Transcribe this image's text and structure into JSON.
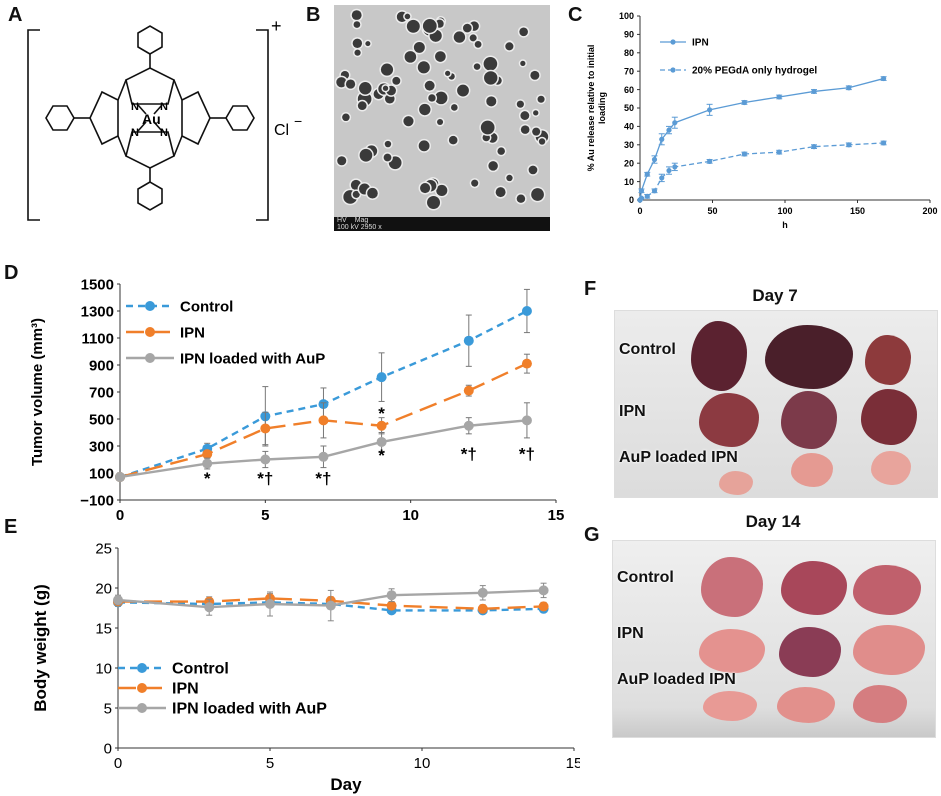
{
  "panels": {
    "a": "A",
    "b": "B",
    "c": "C",
    "d": "D",
    "e": "E",
    "f": "F",
    "g": "G"
  },
  "molecule": {
    "metal": "Au",
    "N": "N",
    "charge": "+",
    "counterion": "Cl",
    "counterion_charge": "−"
  },
  "micrograph": {
    "footer_hv": "HV",
    "footer_mag": "Mag",
    "footer_values": "100 kV 2950 x"
  },
  "photos": {
    "day7": {
      "title": "Day 7",
      "labels": [
        "Control",
        "IPN",
        "AuP loaded IPN"
      ]
    },
    "day14": {
      "title": "Day 14",
      "labels": [
        "Control",
        "IPN",
        "AuP loaded IPN"
      ]
    }
  },
  "colors": {
    "blue": "#3a9ad9",
    "orange": "#f07f2a",
    "gray": "#a6a6a6",
    "release_blue": "#5b9bd5"
  },
  "chart_data": [
    {
      "id": "C",
      "type": "line",
      "title": "",
      "xlabel": "h",
      "ylabel": "% Au release relative to initial loading",
      "xlim": [
        0,
        200
      ],
      "ylim": [
        0,
        100
      ],
      "xticks": [
        0,
        50,
        100,
        150,
        200
      ],
      "yticks": [
        0,
        10,
        20,
        30,
        40,
        50,
        60,
        70,
        80,
        90,
        100
      ],
      "legend": "top-left",
      "series": [
        {
          "name": "IPN",
          "style": "solid",
          "x": [
            0,
            1,
            5,
            10,
            15,
            20,
            24,
            48,
            72,
            96,
            120,
            144,
            168
          ],
          "y": [
            0,
            5,
            14,
            22,
            33,
            38,
            42,
            49,
            53,
            56,
            59,
            61,
            66
          ],
          "err": [
            0,
            1,
            1,
            2,
            3,
            2,
            3,
            3,
            1,
            1,
            1,
            1,
            1
          ]
        },
        {
          "name": "20% PEGdA only hydrogel",
          "style": "dashed",
          "x": [
            0,
            1,
            5,
            10,
            15,
            20,
            24,
            48,
            72,
            96,
            120,
            144,
            168
          ],
          "y": [
            0,
            1,
            2,
            5,
            12,
            16,
            18,
            21,
            25,
            26,
            29,
            30,
            31
          ],
          "err": [
            0,
            0,
            1,
            1,
            2,
            2,
            2,
            1,
            1,
            1,
            1,
            1,
            1
          ]
        }
      ]
    },
    {
      "id": "D",
      "type": "line",
      "title": "",
      "xlabel": "Day",
      "ylabel": "Tumor volume (mm³)",
      "xlim": [
        0,
        15
      ],
      "ylim": [
        -100,
        1500
      ],
      "xticks": [
        0,
        5,
        10,
        15
      ],
      "yticks": [
        -100,
        100,
        300,
        500,
        700,
        900,
        1100,
        1300,
        1500
      ],
      "legend": "top-left",
      "series": [
        {
          "name": "Control",
          "style": "dashed",
          "color": "#3a9ad9",
          "x": [
            0,
            3,
            5,
            7,
            9,
            12,
            14
          ],
          "y": [
            70,
            280,
            520,
            610,
            810,
            1080,
            1300
          ],
          "err": [
            0,
            40,
            220,
            120,
            180,
            190,
            160
          ]
        },
        {
          "name": "IPN",
          "style": "longdash",
          "color": "#f07f2a",
          "x": [
            0,
            3,
            5,
            7,
            9,
            12,
            14
          ],
          "y": [
            70,
            240,
            430,
            490,
            450,
            710,
            910
          ],
          "err": [
            0,
            30,
            120,
            130,
            60,
            40,
            70
          ]
        },
        {
          "name": "IPN loaded with AuP",
          "style": "solid",
          "color": "#a6a6a6",
          "x": [
            0,
            3,
            5,
            7,
            9,
            12,
            14
          ],
          "y": [
            70,
            170,
            200,
            220,
            330,
            450,
            490
          ],
          "err": [
            0,
            40,
            60,
            80,
            70,
            60,
            130
          ]
        }
      ],
      "annotations": [
        {
          "x": 3,
          "y": 20,
          "text": "*"
        },
        {
          "x": 5,
          "y": 20,
          "text": "*†"
        },
        {
          "x": 7,
          "y": 20,
          "text": "*†"
        },
        {
          "x": 9,
          "y": 500,
          "text": "*"
        },
        {
          "x": 9,
          "y": 190,
          "text": "*"
        },
        {
          "x": 12,
          "y": 200,
          "text": "*†"
        },
        {
          "x": 14,
          "y": 200,
          "text": "*†"
        }
      ]
    },
    {
      "id": "E",
      "type": "line",
      "title": "",
      "xlabel": "Day",
      "ylabel": "Body weight (g)",
      "xlim": [
        0,
        15
      ],
      "ylim": [
        0,
        25
      ],
      "xticks": [
        0,
        5,
        10,
        15
      ],
      "yticks": [
        0,
        5,
        10,
        15,
        20,
        25
      ],
      "legend": "bottom-left",
      "series": [
        {
          "name": "Control",
          "style": "dashed",
          "color": "#3a9ad9",
          "x": [
            0,
            3,
            5,
            7,
            9,
            12,
            14
          ],
          "y": [
            18.2,
            18.0,
            18.2,
            18.0,
            17.2,
            17.2,
            17.4
          ],
          "err": [
            0.5,
            0.5,
            0.5,
            0.5,
            0.4,
            0.4,
            0.4
          ]
        },
        {
          "name": "IPN",
          "style": "longdash",
          "color": "#f07f2a",
          "x": [
            0,
            3,
            5,
            7,
            9,
            12,
            14
          ],
          "y": [
            18.3,
            18.3,
            18.7,
            18.4,
            17.8,
            17.4,
            17.7
          ],
          "err": [
            0.5,
            0.6,
            0.6,
            0.5,
            0.5,
            0.5,
            0.5
          ]
        },
        {
          "name": "IPN loaded with AuP",
          "style": "solid",
          "color": "#a6a6a6",
          "x": [
            0,
            3,
            5,
            7,
            9,
            12,
            14
          ],
          "y": [
            18.5,
            17.6,
            18.0,
            17.8,
            19.1,
            19.4,
            19.7
          ],
          "err": [
            0.6,
            1.0,
            1.5,
            1.9,
            0.8,
            0.9,
            0.9
          ]
        }
      ]
    }
  ]
}
